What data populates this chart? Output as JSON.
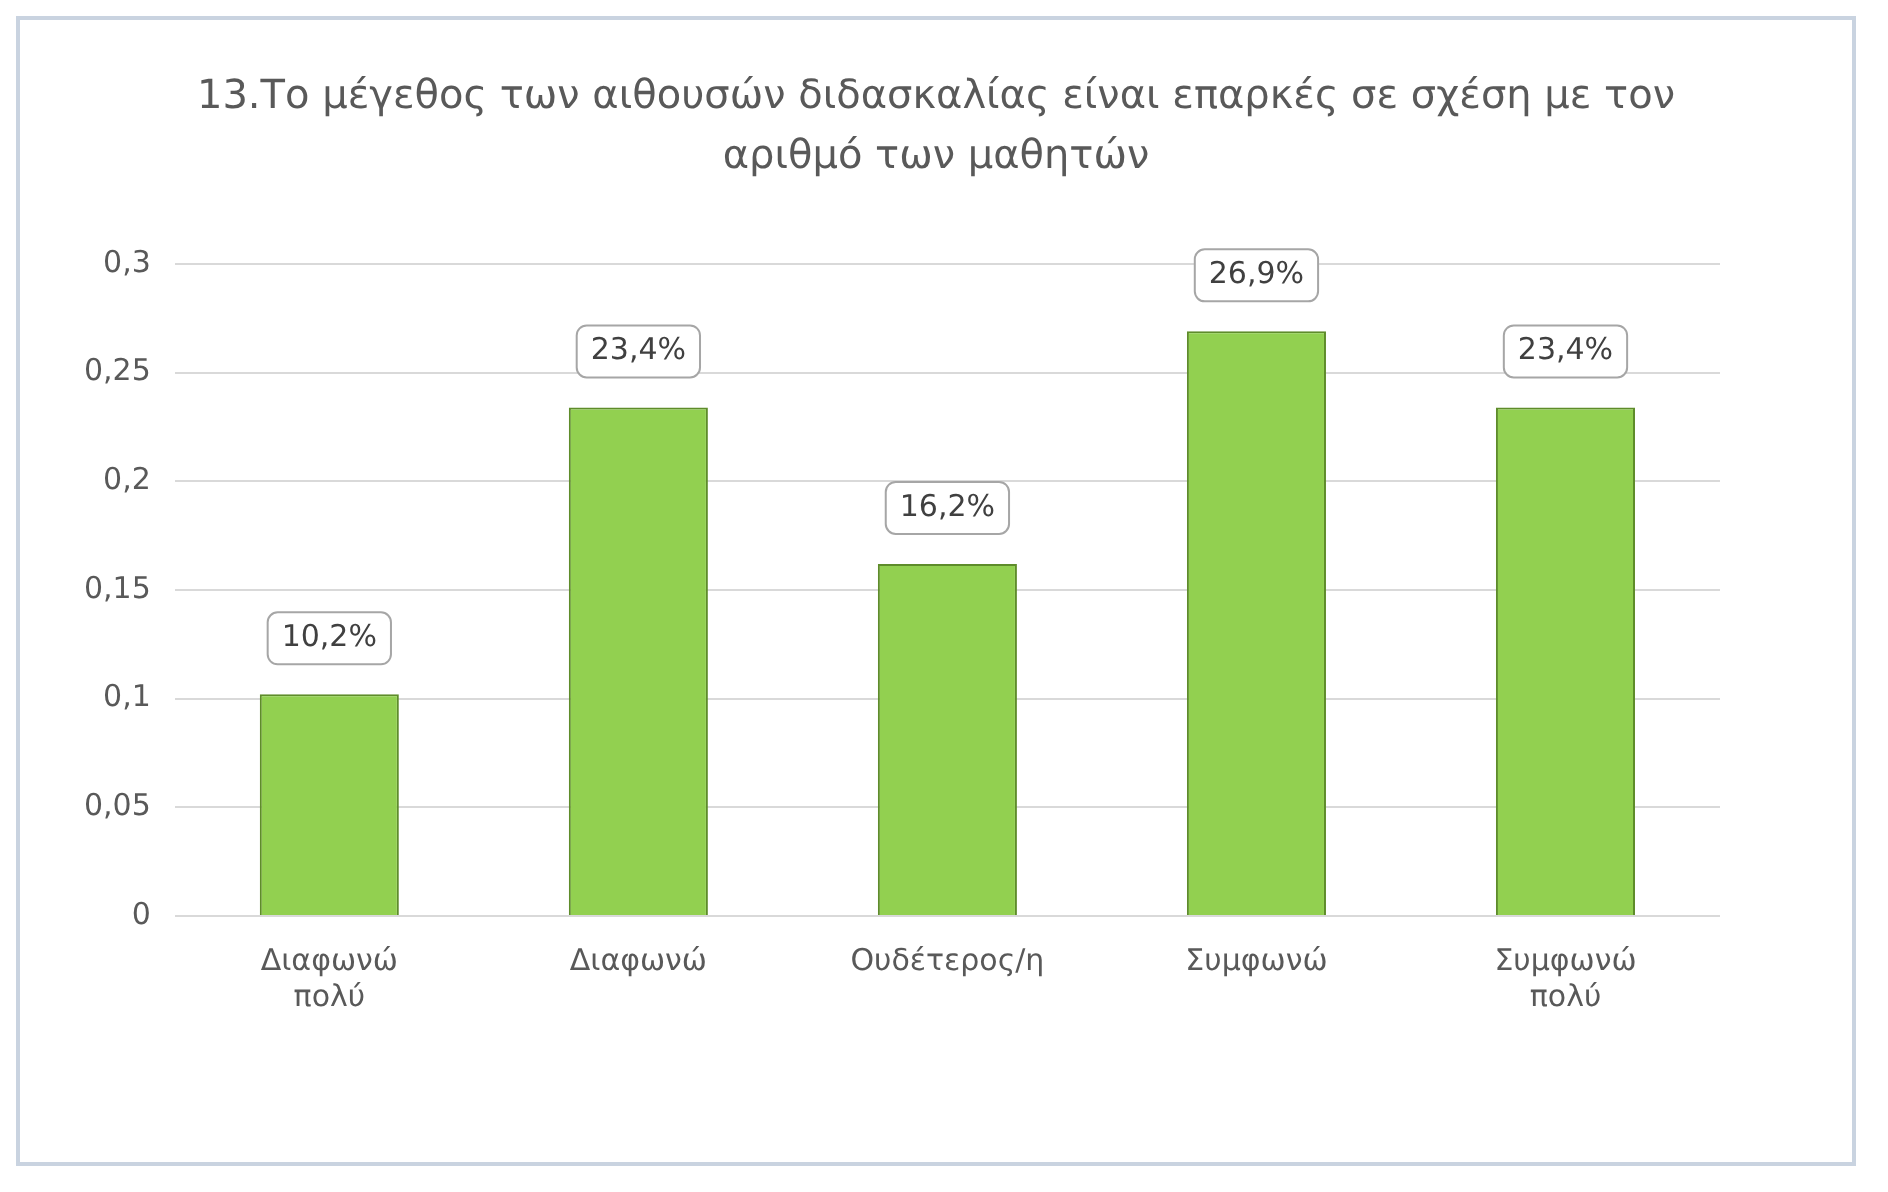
{
  "chart_data": {
    "type": "bar",
    "title": "13.Το μέγεθος των αιθουσών διδασκαλίας είναι επαρκές σε σχέση με τον αριθμό των μαθητών",
    "categories": [
      "Διαφωνώ πολύ",
      "Διαφωνώ",
      "Ουδέτερος/η",
      "Συμφωνώ",
      "Συμφωνώ πολύ"
    ],
    "values": [
      0.102,
      0.234,
      0.162,
      0.269,
      0.234
    ],
    "value_labels": [
      "10,2%",
      "23,4%",
      "16,2%",
      "26,9%",
      "23,4%"
    ],
    "color": "#92d050",
    "ylim": [
      0,
      0.3
    ],
    "yticks": [
      0,
      {
        "value": 0.05,
        "label": "0,05"
      },
      {
        "value": 0.1,
        "label": "0,1"
      },
      {
        "value": 0.15,
        "label": "0,15"
      },
      {
        "value": 0.2,
        "label": "0,2"
      },
      {
        "value": 0.25,
        "label": "0,25"
      },
      {
        "value": 0.3,
        "label": "0,3"
      }
    ],
    "grid": "y",
    "legend": false
  }
}
